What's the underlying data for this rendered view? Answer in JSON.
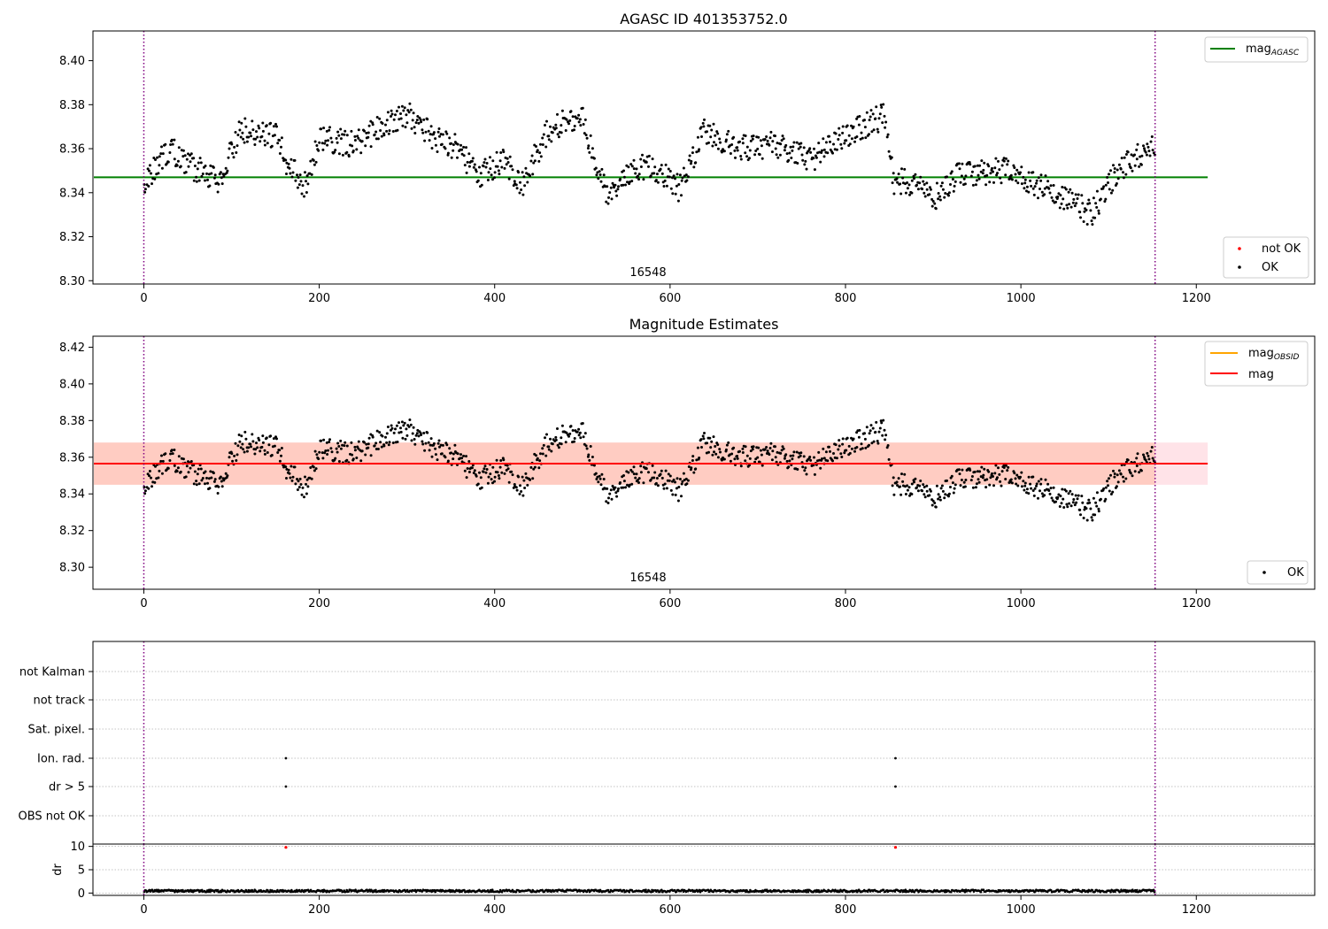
{
  "colors": {
    "ok": "#000000",
    "not_ok": "#ff0000",
    "mag_agasc": "#008000",
    "mag_obsid": "#ffa500",
    "mag": "#ff0000",
    "band_outer": "#ffc0cb",
    "band_inner": "#ffa07a",
    "obs_boundary": "#800080",
    "grid": "#b0b0b0"
  },
  "chart_data": [
    {
      "type": "scatter",
      "title": "AGASC ID 401353752.0",
      "xlim": [
        -58,
        1335
      ],
      "ylim": [
        8.2985,
        8.4135
      ],
      "xticks": [
        "0",
        "200",
        "400",
        "600",
        "800",
        "1000",
        "1200"
      ],
      "yticks": [
        "8.30",
        "8.32",
        "8.34",
        "8.36",
        "8.38",
        "8.40"
      ],
      "obsid_label": "16548",
      "obs_boundaries": [
        0,
        1153
      ],
      "reference_lines": [
        {
          "legend": "mag",
          "legend_sub": "AGASC",
          "value": 8.347,
          "x_end": 1213
        }
      ],
      "legend_lines": [
        {
          "label": "mag",
          "sub": "AGASC"
        }
      ],
      "legend_points": [
        "not OK",
        "OK"
      ],
      "series_points": {
        "n": 1153,
        "x_range": [
          0,
          1153
        ],
        "y_range": [
          8.329,
          8.383
        ]
      }
    },
    {
      "type": "scatter",
      "title": "Magnitude Estimates",
      "xlim": [
        -58,
        1335
      ],
      "ylim": [
        8.288,
        8.426
      ],
      "xticks": [
        "0",
        "200",
        "400",
        "600",
        "800",
        "1000",
        "1200"
      ],
      "yticks": [
        "8.30",
        "8.32",
        "8.34",
        "8.36",
        "8.38",
        "8.40",
        "8.42"
      ],
      "obsid_label": "16548",
      "obs_boundaries": [
        0,
        1153
      ],
      "mag_obsid": 8.3565,
      "mag": 8.3565,
      "band_outer": [
        8.345,
        8.368
      ],
      "band_inner": [
        8.345,
        8.368
      ],
      "legend_lines": [
        {
          "label": "mag",
          "sub": "OBSID"
        },
        {
          "label": "mag",
          "sub": ""
        }
      ],
      "legend_points": [
        "OK"
      ]
    },
    {
      "type": "scatter",
      "categories": [
        "not Kalman",
        "not track",
        "Sat. pixel.",
        "Ion. rad.",
        "dr > 5",
        "OBS not OK"
      ],
      "flag_points": [
        {
          "category": "Ion. rad.",
          "x": [
            162,
            857
          ]
        },
        {
          "category": "dr > 5",
          "x": [
            162,
            857
          ]
        }
      ],
      "obs_boundaries": [
        0,
        1153
      ],
      "xlim": [
        -58,
        1335
      ]
    },
    {
      "type": "scatter",
      "ylabel": "dr",
      "ylim": [
        -0.5,
        10.5
      ],
      "yticks": [
        "0",
        "5",
        "10"
      ],
      "xticks": [
        "0",
        "200",
        "400",
        "600",
        "800",
        "1000",
        "1200"
      ],
      "xlim": [
        -58,
        1335
      ],
      "not_ok_points": [
        {
          "x": 162,
          "y": 9.8
        },
        {
          "x": 857,
          "y": 9.8
        }
      ],
      "obs_boundaries": [
        0,
        1153
      ]
    }
  ]
}
